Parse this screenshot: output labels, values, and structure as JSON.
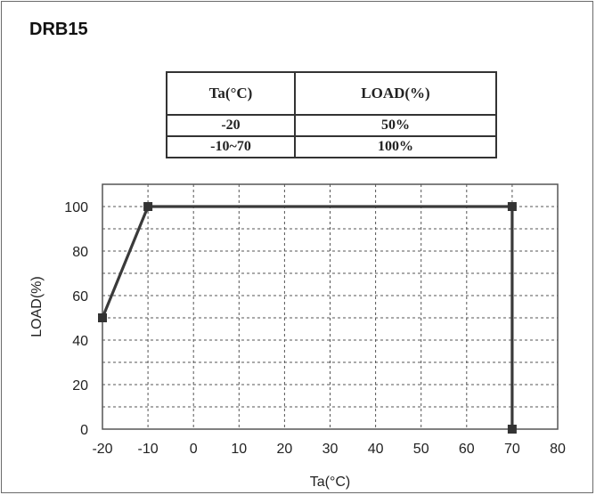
{
  "title": "DRB15",
  "table": {
    "headers": [
      "Ta(°C)",
      "LOAD(%)"
    ],
    "rows": [
      [
        "-20",
        "50%"
      ],
      [
        "-10~70",
        "100%"
      ]
    ]
  },
  "chart_data": {
    "type": "line",
    "title": "",
    "xlabel": "Ta(°C)",
    "ylabel": "LOAD(%)",
    "xlim": [
      -20,
      80
    ],
    "ylim": [
      0,
      110
    ],
    "xticks": [
      -20,
      -10,
      0,
      10,
      20,
      30,
      40,
      50,
      60,
      70,
      80
    ],
    "yticks": [
      0,
      20,
      40,
      60,
      80,
      100
    ],
    "grid": true,
    "series": [
      {
        "x": [
          -20,
          -10,
          70,
          70
        ],
        "y": [
          50,
          100,
          100,
          0
        ]
      }
    ],
    "colors": {
      "line": "#3a3a3a",
      "grid": "#555555",
      "marker": "#333333"
    }
  }
}
